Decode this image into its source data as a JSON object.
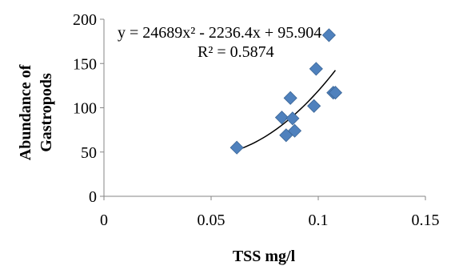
{
  "chart_data": {
    "type": "scatter",
    "xlabel": "TSS mg/l",
    "ylabel_lines": [
      "Abundance of",
      "Gastropods"
    ],
    "xlim": [
      0,
      0.15
    ],
    "ylim": [
      0,
      200
    ],
    "x_ticks": [
      0,
      0.05,
      0.1,
      0.15
    ],
    "x_tick_labels": [
      "0",
      "0.05",
      "0.1",
      "0.15"
    ],
    "y_ticks": [
      0,
      50,
      100,
      150,
      200
    ],
    "y_tick_labels": [
      "0",
      "50",
      "100",
      "150",
      "200"
    ],
    "points": [
      {
        "x": 0.062,
        "y": 55
      },
      {
        "x": 0.083,
        "y": 89
      },
      {
        "x": 0.085,
        "y": 69
      },
      {
        "x": 0.087,
        "y": 111
      },
      {
        "x": 0.088,
        "y": 88
      },
      {
        "x": 0.089,
        "y": 74
      },
      {
        "x": 0.098,
        "y": 102
      },
      {
        "x": 0.099,
        "y": 144
      },
      {
        "x": 0.105,
        "y": 182
      },
      {
        "x": 0.107,
        "y": 117
      },
      {
        "x": 0.108,
        "y": 117
      }
    ],
    "trendline": {
      "type": "polynomial",
      "coefficients": [
        24689,
        -2236.4,
        95.904
      ],
      "x_range": [
        0.062,
        0.108
      ]
    },
    "equation_text": "y = 24689x² - 2236.4x + 95.904",
    "r2_text": "R² = 0.5874",
    "marker_color": "#4F81BD",
    "trendline_color": "#000000",
    "grid": false,
    "legend": "none"
  }
}
